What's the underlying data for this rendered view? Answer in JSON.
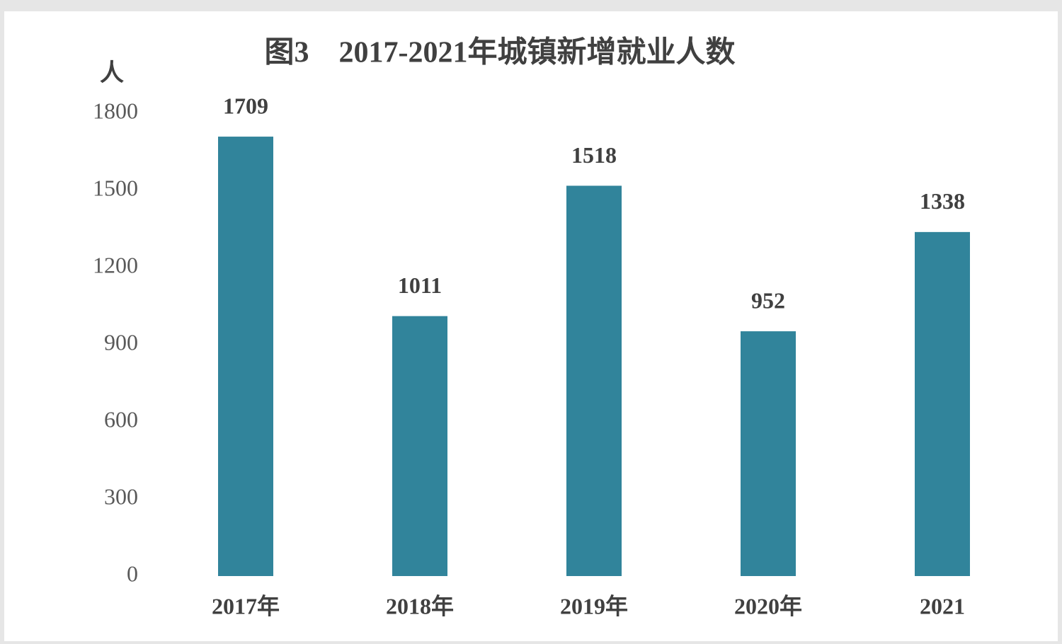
{
  "chart_data": {
    "type": "bar",
    "title": "图3　2017-2021年城镇新增就业人数",
    "y_label": "人",
    "categories": [
      "2017年",
      "2018年",
      "2019年",
      "2020年",
      "2021"
    ],
    "values": [
      1709,
      1011,
      1518,
      952,
      1338
    ],
    "color": "#31849b",
    "ylim": [
      0,
      1800
    ],
    "yticks": [
      0,
      300,
      600,
      900,
      1200,
      1500,
      1800
    ],
    "grid": false
  }
}
